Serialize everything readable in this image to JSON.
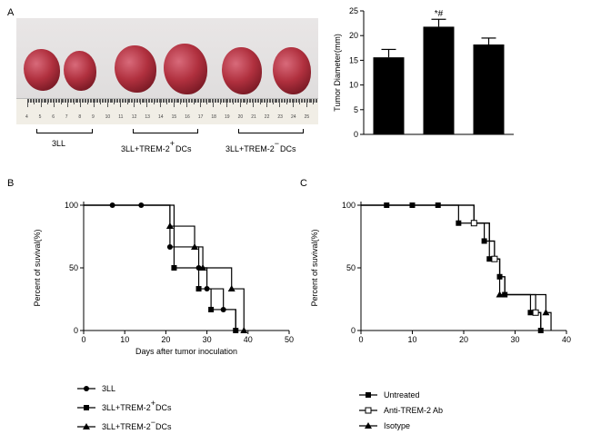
{
  "panels": {
    "a_label": "A",
    "b_label": "B",
    "c_label": "C"
  },
  "photo": {
    "ruler_numbers": [
      "4",
      "5",
      "6",
      "7",
      "8",
      "9",
      "10",
      "11",
      "12",
      "13",
      "14",
      "15",
      "16",
      "17",
      "18",
      "19",
      "20",
      "21",
      "22",
      "23",
      "24",
      "25"
    ],
    "group_labels": [
      "3LL",
      "3LL+TREM-2",
      "DCs",
      "3LL+TREM-2",
      "DCs"
    ],
    "sup_plus": "+",
    "sup_minus": "−"
  },
  "chart_data": [
    {
      "id": "bar",
      "type": "bar",
      "categories": [
        "3LL",
        "3LL+TREM-2+ DCs",
        "3LL+TREM-2- DCs"
      ],
      "values": [
        15.6,
        21.8,
        18.2
      ],
      "errors": [
        1.6,
        1.5,
        1.3
      ],
      "annotations": [
        "",
        "*#",
        ""
      ],
      "ylabel": "Tumor Diameter(mm)",
      "ylim": [
        0,
        25
      ],
      "yticks": [
        "0",
        "5",
        "10",
        "15",
        "20",
        "25"
      ]
    },
    {
      "id": "survival_b",
      "type": "line",
      "step": true,
      "xlabel": "Days after tumor inoculation",
      "ylabel": "Percent of suvival(%)",
      "xlim": [
        0,
        50
      ],
      "ylim": [
        0,
        100
      ],
      "xticks": [
        "0",
        "10",
        "20",
        "30",
        "40",
        "50"
      ],
      "yticks": [
        "0",
        "50",
        "100"
      ],
      "series": [
        {
          "name": "3LL",
          "marker": "circle",
          "x": [
            0,
            21,
            28,
            30,
            34,
            37
          ],
          "y": [
            100,
            66.7,
            50,
            33.3,
            16.7,
            0
          ]
        },
        {
          "name": "3LL+TREM-2+DCs",
          "marker": "square",
          "x": [
            0,
            22,
            28,
            31,
            37
          ],
          "y": [
            100,
            50,
            33.3,
            16.7,
            0
          ]
        },
        {
          "name": "3LL+TREM-2-DCs",
          "marker": "triangle",
          "x": [
            0,
            21,
            27,
            29,
            36,
            39
          ],
          "y": [
            100,
            83.3,
            66.7,
            50,
            33.3,
            0
          ]
        }
      ],
      "markers": [
        {
          "series": 0,
          "x": 7,
          "y": 100
        },
        {
          "series": 0,
          "x": 14,
          "y": 100
        },
        {
          "series": 0,
          "x": 21,
          "y": 66.7
        },
        {
          "series": 0,
          "x": 28,
          "y": 50
        },
        {
          "series": 0,
          "x": 30,
          "y": 33.3
        },
        {
          "series": 0,
          "x": 34,
          "y": 16.7
        },
        {
          "series": 0,
          "x": 37,
          "y": 0
        },
        {
          "series": 1,
          "x": 22,
          "y": 50
        },
        {
          "series": 1,
          "x": 28,
          "y": 33.3
        },
        {
          "series": 1,
          "x": 31,
          "y": 16.7
        },
        {
          "series": 1,
          "x": 37,
          "y": 0
        },
        {
          "series": 2,
          "x": 21,
          "y": 83.3
        },
        {
          "series": 2,
          "x": 27,
          "y": 66.7
        },
        {
          "series": 2,
          "x": 29,
          "y": 50
        },
        {
          "series": 2,
          "x": 36,
          "y": 33.3
        },
        {
          "series": 2,
          "x": 39,
          "y": 0
        }
      ],
      "legend": [
        "3LL",
        "3LL+TREM-2",
        "DCs",
        "3LL+TREM-2",
        "DCs"
      ]
    },
    {
      "id": "survival_c",
      "type": "line",
      "step": true,
      "xlabel": "",
      "ylabel": "Percent of suvival(%)",
      "xlim": [
        0,
        40
      ],
      "ylim": [
        0,
        100
      ],
      "xticks": [
        "0",
        "10",
        "20",
        "30",
        "40"
      ],
      "yticks": [
        "0",
        "50",
        "100"
      ],
      "series": [
        {
          "name": "Untreated",
          "marker": "square",
          "x": [
            0,
            19,
            24,
            25,
            27,
            28,
            33,
            35
          ],
          "y": [
            100,
            85.7,
            71.4,
            57.1,
            42.9,
            28.6,
            14.3,
            0
          ]
        },
        {
          "name": "Anti-TREM-2 Ab",
          "marker": "open-square",
          "x": [
            0,
            22,
            25,
            26,
            27,
            28,
            34,
            35
          ],
          "y": [
            100,
            85.7,
            71.4,
            57.1,
            42.9,
            28.6,
            14.3,
            0
          ]
        },
        {
          "name": "Isotype",
          "marker": "triangle",
          "x": [
            0,
            22,
            25,
            26,
            27,
            31,
            36,
            37
          ],
          "y": [
            100,
            85.7,
            71.4,
            57.1,
            28.6,
            28.6,
            14.3,
            0
          ]
        }
      ],
      "markers": [
        {
          "series": 0,
          "x": 5,
          "y": 100
        },
        {
          "series": 0,
          "x": 10,
          "y": 100
        },
        {
          "series": 0,
          "x": 15,
          "y": 100
        },
        {
          "series": 0,
          "x": 19,
          "y": 85.7
        },
        {
          "series": 0,
          "x": 24,
          "y": 71.4
        },
        {
          "series": 0,
          "x": 25,
          "y": 57.1
        },
        {
          "series": 0,
          "x": 27,
          "y": 42.9
        },
        {
          "series": 0,
          "x": 28,
          "y": 28.6
        },
        {
          "series": 0,
          "x": 33,
          "y": 14.3
        },
        {
          "series": 0,
          "x": 35,
          "y": 0
        },
        {
          "series": 1,
          "x": 22,
          "y": 85.7
        },
        {
          "series": 1,
          "x": 26,
          "y": 57.1
        },
        {
          "series": 1,
          "x": 34,
          "y": 14.3
        },
        {
          "series": 2,
          "x": 27,
          "y": 28.6
        },
        {
          "series": 2,
          "x": 36,
          "y": 14.3
        }
      ],
      "legend": [
        "Untreated",
        "Anti-TREM-2 Ab",
        "Isotype"
      ]
    }
  ]
}
